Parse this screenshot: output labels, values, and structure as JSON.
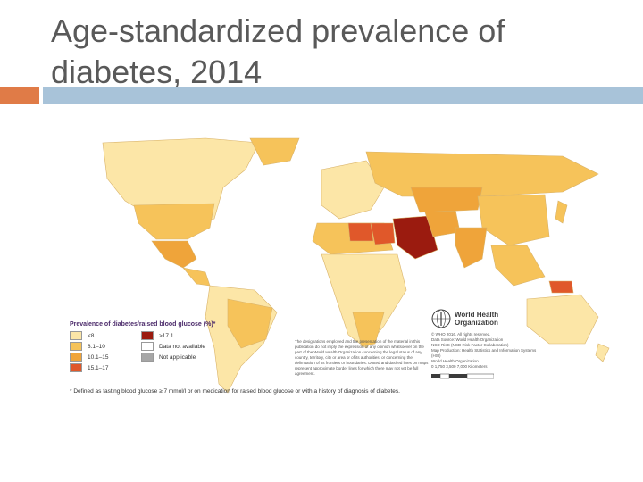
{
  "slide": {
    "title": "Age-standardized prevalence of diabetes, 2014",
    "accent_orange": "#E07B47",
    "accent_blue": "#A8C3D9"
  },
  "legend": {
    "title": "Prevalence of diabetes/raised blood glucose (%)*",
    "items": [
      {
        "label": "<8",
        "color": "#FCE6A7"
      },
      {
        "label": ">17.1",
        "color": "#9B1B0F"
      },
      {
        "label": "8.1–10",
        "color": "#F6C35A"
      },
      {
        "label": "Data not available",
        "color": "#FFFFFF"
      },
      {
        "label": "10.1–15",
        "color": "#EFA43A"
      },
      {
        "label": "Not applicable",
        "color": "#A6A6A6"
      },
      {
        "label": "15.1–17",
        "color": "#E0582A"
      }
    ]
  },
  "footnote": "* Defined as fasting blood glucose ≥ 7 mmol/l or on medication for raised blood glucose or with a history of diagnosis of diabetes.",
  "disclaimer": "The designations employed and the presentation of the material in this publication do not imply the expression of any opinion whatsoever on the part of the World Health Organization concerning the legal status of any country, territory, city or area or of its authorities, or concerning the delimitation of its frontiers or boundaries. Dotted and dashed lines on maps represent approximate border lines for which there may not yet be full agreement.",
  "who": {
    "name_line1": "World Health",
    "name_line2": "Organization",
    "rights": "© WHO 2016. All rights reserved.",
    "source1": "Data Source: World Health Organization",
    "source2": "NCD RisC (NCD Risk Factor Collaboration)",
    "source3": "Map Production: Health Statistics and Information Systems (HSI)",
    "source4": "World Health Organization",
    "scale": "0  1,750  3,500    7,000 Kilometers"
  }
}
